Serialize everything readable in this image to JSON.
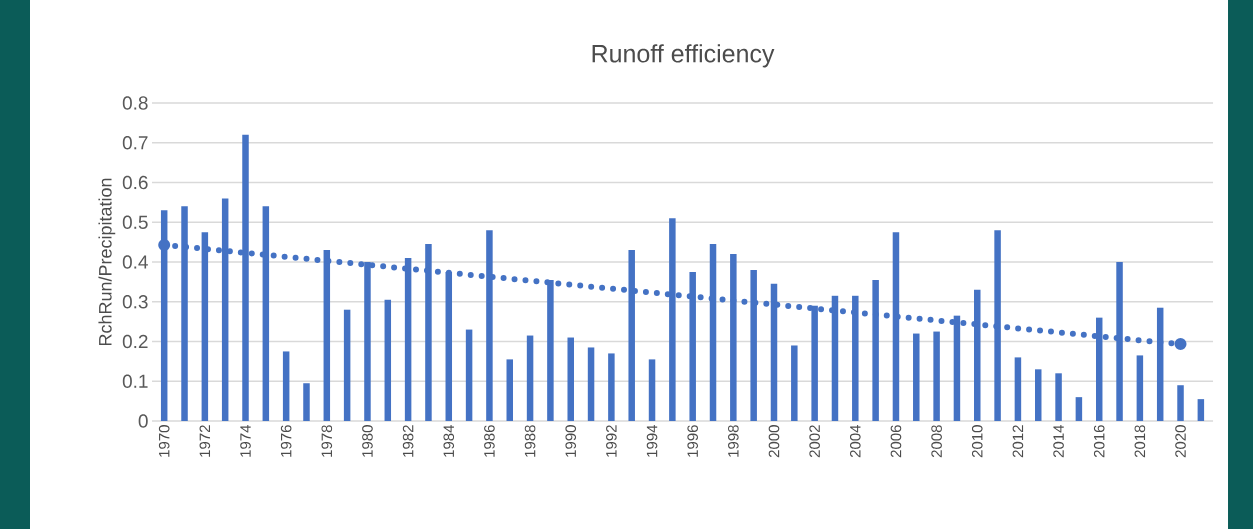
{
  "chart_data": {
    "type": "bar",
    "title": "Runoff efficiency",
    "ylabel": "RchRun/Precipitation",
    "categories": [
      "1970",
      null,
      "1972",
      null,
      "1974",
      null,
      "1976",
      null,
      "1978",
      null,
      "1980",
      null,
      "1982",
      null,
      "1984",
      null,
      "1986",
      null,
      "1988",
      null,
      "1990",
      null,
      "1992",
      null,
      "1994",
      null,
      "1996",
      null,
      "1998",
      null,
      "2000",
      null,
      "2002",
      null,
      "2004",
      null,
      "2006",
      null,
      "2008",
      null,
      "2010",
      null,
      "2012",
      null,
      "2014",
      null,
      "2016",
      null,
      "2018",
      null,
      "2020",
      null
    ],
    "ylim": [
      0,
      0.8
    ],
    "yticks": [
      0,
      0.1,
      0.2,
      0.3,
      0.4,
      0.5,
      0.6,
      0.7,
      0.8
    ],
    "grid": "y",
    "legend": false,
    "series": [
      {
        "color": "#4472c4",
        "values": [
          0.53,
          0.54,
          0.475,
          0.56,
          0.72,
          0.54,
          0.175,
          0.095,
          0.43,
          0.28,
          0.4,
          0.305,
          0.41,
          0.445,
          0.375,
          0.23,
          0.48,
          0.155,
          0.215,
          0.355,
          0.21,
          0.185,
          0.17,
          0.43,
          0.155,
          0.51,
          0.375,
          0.445,
          0.42,
          0.38,
          0.345,
          0.19,
          0.29,
          0.315,
          0.315,
          0.355,
          0.475,
          0.22,
          0.225,
          0.265,
          0.33,
          0.48,
          0.16,
          0.13,
          0.12,
          0.06,
          0.26,
          0.4,
          0.165,
          0.285,
          0.09,
          0.055
        ]
      },
      {
        "type": "line",
        "values": [
          0.443,
          0.438,
          0.433,
          0.428,
          0.423,
          0.418,
          0.413,
          0.408,
          0.403,
          0.398,
          0.393,
          0.388,
          0.383,
          0.378,
          0.373,
          0.368,
          0.363,
          0.358,
          0.353,
          0.348,
          0.343,
          0.338,
          0.333,
          0.328,
          0.323,
          0.318,
          0.313,
          0.308,
          0.303,
          0.298,
          0.293,
          0.288,
          0.283,
          0.278,
          0.273,
          0.268,
          0.263,
          0.258,
          0.253,
          0.248,
          0.243,
          0.238,
          0.233,
          0.228,
          0.223,
          0.218,
          0.213,
          0.208,
          0.203,
          0.198,
          0.194,
          null
        ],
        "color": "#4472c4",
        "line_style": "dotted",
        "marker": "none"
      }
    ]
  }
}
